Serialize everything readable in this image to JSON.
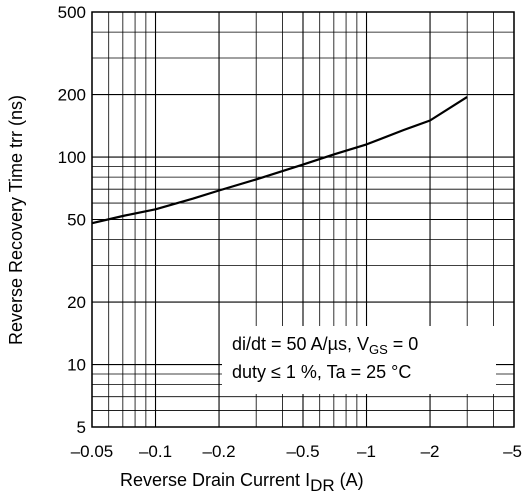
{
  "chart_data": {
    "type": "line",
    "title": "",
    "xscale": "log",
    "yscale": "log",
    "x_direction": "negative (magnitude increases to the right)",
    "xlim": [
      -0.05,
      -5
    ],
    "ylim": [
      5,
      500
    ],
    "grid": true,
    "x_ticks": [
      {
        "value": -0.05,
        "label": "–0.05"
      },
      {
        "value": -0.1,
        "label": "–0.1"
      },
      {
        "value": -0.2,
        "label": "–0.2"
      },
      {
        "value": -0.5,
        "label": "–0.5"
      },
      {
        "value": -1,
        "label": "–1"
      },
      {
        "value": -2,
        "label": "–2"
      },
      {
        "value": -5,
        "label": "–5"
      }
    ],
    "y_ticks": [
      {
        "value": 5,
        "label": "5"
      },
      {
        "value": 10,
        "label": "10"
      },
      {
        "value": 20,
        "label": "20"
      },
      {
        "value": 50,
        "label": "50"
      },
      {
        "value": 100,
        "label": "100"
      },
      {
        "value": 200,
        "label": "200"
      },
      {
        "value": 500,
        "label": "500"
      }
    ],
    "xlabel": {
      "main": "Reverse Drain Current   I",
      "sub": "DR",
      "unit": "  (A)"
    },
    "ylabel": "Reverse Recovery Time   trr   (ns)",
    "annotation": {
      "line1": {
        "pre": "di/dt = 50 A/µs, V",
        "sub": "GS",
        "post": " = 0"
      },
      "line2": "duty ≤ 1 %, Ta = 25 °C"
    },
    "series": [
      {
        "x": [
          -0.05,
          -0.07,
          -0.1,
          -0.15,
          -0.2,
          -0.3,
          -0.5,
          -0.7,
          -1,
          -1.5,
          -2,
          -3
        ],
        "y": [
          48,
          52,
          56,
          63,
          69,
          78,
          92,
          103,
          115,
          135,
          150,
          195
        ]
      }
    ]
  }
}
